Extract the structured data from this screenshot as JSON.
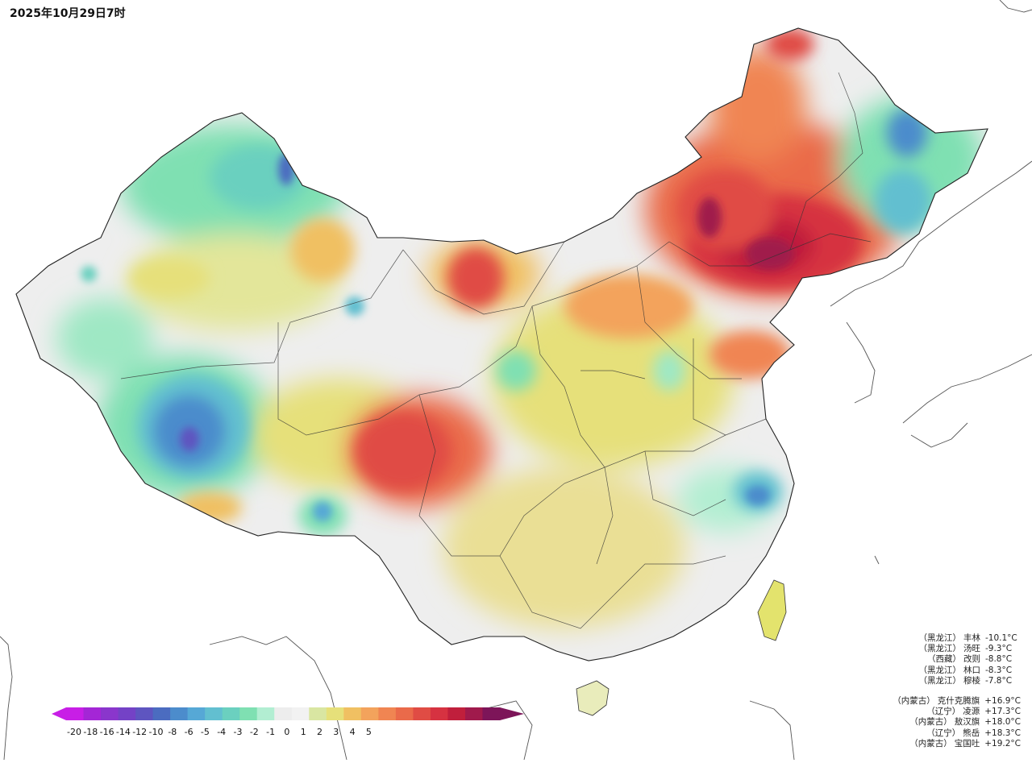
{
  "title": "2025年10月29日7时",
  "legend": {
    "tick_labels": [
      "-20",
      "-18",
      "-16",
      "-14",
      "-12",
      "-10",
      "-8",
      "-6",
      "-5",
      "-4",
      "-3",
      "-2",
      "-1",
      "0",
      "1",
      "2",
      "3",
      "4",
      "5"
    ],
    "colors": [
      "#c81ee6",
      "#a426d6",
      "#8a36cc",
      "#7442c6",
      "#5e55c0",
      "#4b6cc0",
      "#4c8ccc",
      "#56a8d6",
      "#62bfd0",
      "#6bd0bf",
      "#7fe0b2",
      "#b2eed2",
      "#ededed",
      "#f2f2f2",
      "#d9e6a2",
      "#e6e07a",
      "#f0c062",
      "#f3a35c",
      "#f08552",
      "#ea6a4a",
      "#e04c44",
      "#d63241",
      "#c01f3c",
      "#a01a4c",
      "#7d1559"
    ]
  },
  "cold_stations": [
    {
      "province": "（黑龙江）",
      "name": "丰林",
      "value": "-10.1°C"
    },
    {
      "province": "（黑龙江）",
      "name": "汤旺",
      "value": "-9.3°C"
    },
    {
      "province": "（西藏）",
      "name": "改则",
      "value": "-8.8°C"
    },
    {
      "province": "（黑龙江）",
      "name": "林口",
      "value": "-8.3°C"
    },
    {
      "province": "（黑龙江）",
      "name": "穆棱",
      "value": "-7.8°C"
    }
  ],
  "warm_stations": [
    {
      "province": "（内蒙古）",
      "name": "克什克腾旗",
      "value": "+16.9°C"
    },
    {
      "province": "（辽宁）",
      "name": "凌源",
      "value": "+17.3°C"
    },
    {
      "province": "（内蒙古）",
      "name": "敖汉旗",
      "value": "+18.0°C"
    },
    {
      "province": "（辽宁）",
      "name": "熊岳",
      "value": "+18.3°C"
    },
    {
      "province": "（内蒙古）",
      "name": "宝国吐",
      "value": "+19.2°C"
    }
  ]
}
